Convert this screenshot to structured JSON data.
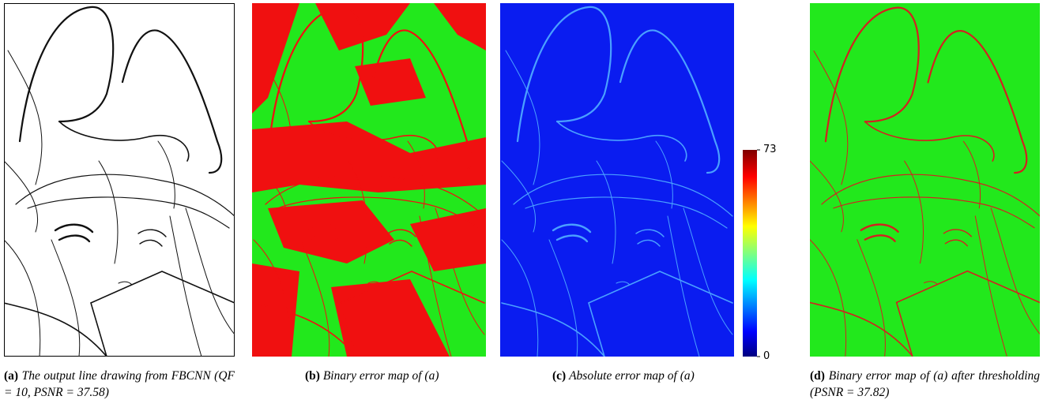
{
  "panels": [
    {
      "label": "(a)",
      "caption": "The output line drawing from FBCNN (QF = 10, PSNR = 37.58)"
    },
    {
      "label": "(b)",
      "caption": "Binary error map of (a)"
    },
    {
      "label": "(c)",
      "caption": "Absolute error map of (a)"
    },
    {
      "label": "(d)",
      "caption": "Binary error map of (a) after thresholding (PSNR = 37.82)"
    }
  ],
  "colorbar": {
    "max": 73,
    "min": 0
  }
}
